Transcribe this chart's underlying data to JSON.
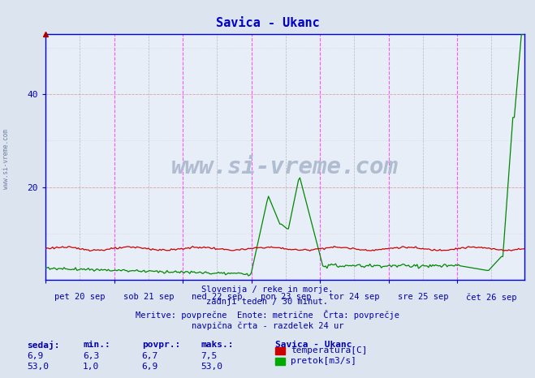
{
  "title": "Savica - Ukanc",
  "title_color": "#0000cc",
  "background_color": "#dce4f0",
  "plot_bg_color": "#e8eef8",
  "ylim": [
    0,
    53
  ],
  "yticks": [
    20,
    40
  ],
  "x_labels": [
    "pet 20 sep",
    "sob 21 sep",
    "ned 22 sep",
    "pon 23 sep",
    "tor 24 sep",
    "sre 25 sep",
    "čet 26 sep"
  ],
  "num_points": 336,
  "vline_color": "#ff44ff",
  "vline_color2": "#888888",
  "hgrid_color": "#dd8888",
  "hgrid2_color": "#cccccc",
  "temp_color": "#cc0000",
  "flow_color": "#008800",
  "axis_color": "#0000aa",
  "spine_color": "#0000dd",
  "watermark": "www.si-vreme.com",
  "watermark_color": "#b0bcd0",
  "sidebar_text": "www.si-vreme.com",
  "subtitle_lines": [
    "Slovenija / reke in morje.",
    "zadnji teden / 30 minut.",
    "Meritve: povprečne  Enote: metrične  Črta: povprečje",
    "navpična črta - razdelek 24 ur"
  ],
  "stats_headers": [
    "sedaj:",
    "min.:",
    "povpr.:",
    "maks.:"
  ],
  "station_name": "Savica - Ukanc",
  "temp_stats": [
    "6,9",
    "6,3",
    "6,7",
    "7,5"
  ],
  "flow_stats": [
    "53,0",
    "1,0",
    "6,9",
    "53,0"
  ],
  "temp_label": "temperatura[C]",
  "flow_label": "pretok[m3/s]"
}
